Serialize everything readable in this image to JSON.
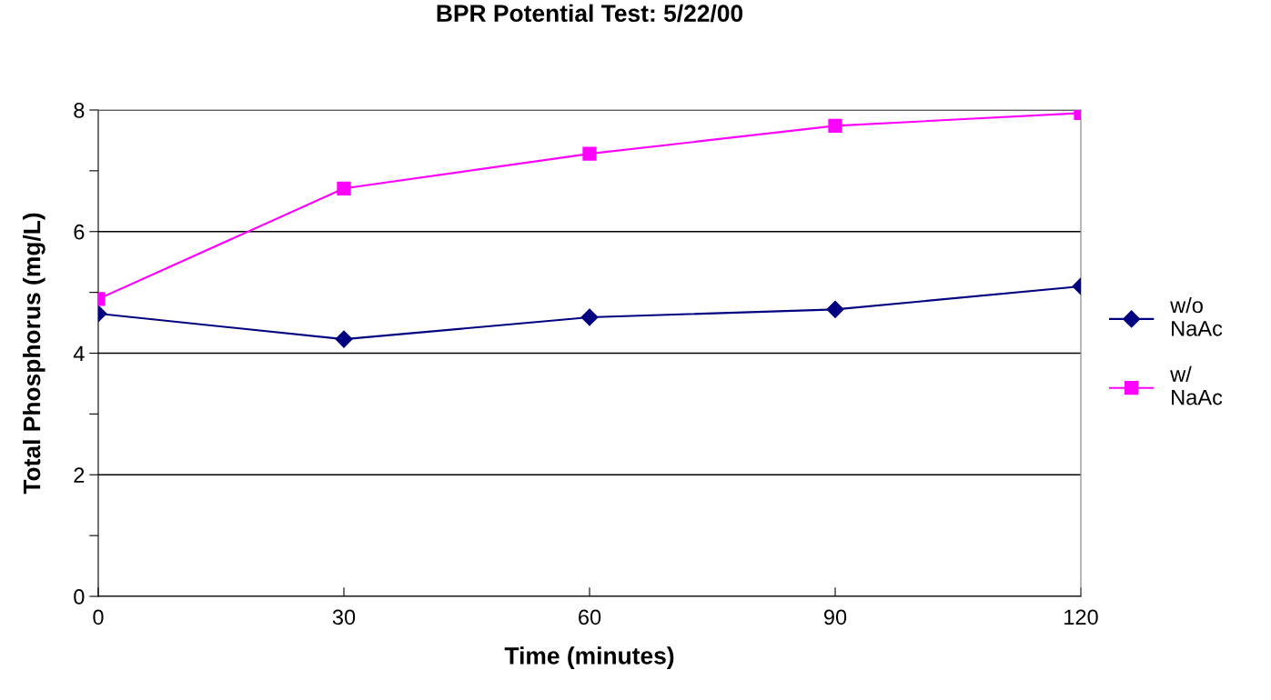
{
  "chart_data": {
    "type": "line",
    "title": "BPR Potential Test: 5/22/00",
    "xlabel": "Time (minutes)",
    "ylabel": "Total Phosphorus (mg/L)",
    "x": [
      0,
      30,
      60,
      90,
      120
    ],
    "series": [
      {
        "name": "w/o\nNaAc",
        "color": "#000080",
        "marker": "diamond",
        "values": [
          4.65,
          4.23,
          4.59,
          4.72,
          5.1
        ]
      },
      {
        "name": "w/\nNaAc",
        "color": "#ff00ff",
        "marker": "square",
        "values": [
          4.89,
          6.71,
          7.28,
          7.74,
          7.95
        ]
      }
    ],
    "xlim": [
      0,
      120
    ],
    "xticks": [
      0,
      30,
      60,
      90,
      120
    ],
    "ylim": [
      0,
      8
    ],
    "yticks": [
      0,
      {
        "value": 1,
        "label": null
      },
      2,
      {
        "value": 3,
        "label": null
      },
      4,
      {
        "value": 5,
        "label": null
      },
      6,
      {
        "value": 7,
        "label": null
      },
      8
    ],
    "grid": "y",
    "legend": "right",
    "line_style": "solid"
  }
}
